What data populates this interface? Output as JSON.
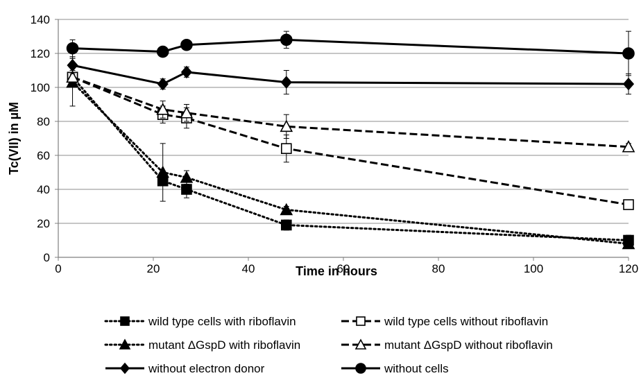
{
  "chart_data": {
    "type": "line",
    "title": "",
    "xlabel": "Time in hours",
    "ylabel": "Tc(VII) in µM",
    "xlim": [
      0,
      120
    ],
    "ylim": [
      0,
      140
    ],
    "xticks": [
      0,
      20,
      40,
      60,
      80,
      100,
      120
    ],
    "yticks": [
      0,
      20,
      40,
      60,
      80,
      100,
      120,
      140
    ],
    "grid": "horizontal",
    "legend_position": "bottom",
    "series": [
      {
        "name": "wild type cells with riboflavin",
        "line": "dotted",
        "marker": "square",
        "filled": true,
        "x": [
          3,
          22,
          27,
          48,
          120
        ],
        "y": [
          106,
          45,
          40,
          19,
          10
        ],
        "err": [
          4,
          0,
          5,
          3,
          3
        ]
      },
      {
        "name": "wild type cells without riboflavin",
        "line": "dashed",
        "marker": "square",
        "filled": false,
        "x": [
          3,
          22,
          27,
          48,
          120
        ],
        "y": [
          106,
          84,
          82,
          64,
          31
        ],
        "err": [
          0,
          5,
          6,
          8,
          0
        ]
      },
      {
        "name": "mutant ΔGspD with riboflavin",
        "line": "dotted",
        "marker": "triangle",
        "filled": true,
        "x": [
          3,
          22,
          27,
          48,
          120
        ],
        "y": [
          103,
          50,
          47,
          28,
          8
        ],
        "err": [
          14,
          17,
          4,
          2,
          2
        ]
      },
      {
        "name": "mutant ΔGspD without riboflavin",
        "line": "dashed",
        "marker": "triangle",
        "filled": false,
        "x": [
          3,
          22,
          27,
          48,
          120
        ],
        "y": [
          106,
          87,
          85,
          77,
          65
        ],
        "err": [
          0,
          5,
          5,
          7,
          2
        ]
      },
      {
        "name": "without electron donor",
        "line": "solid",
        "marker": "diamond",
        "filled": true,
        "x": [
          3,
          22,
          27,
          48,
          120
        ],
        "y": [
          113,
          102,
          109,
          103,
          102
        ],
        "err": [
          5,
          3,
          3,
          7,
          6
        ]
      },
      {
        "name": "without cells",
        "line": "solid",
        "marker": "circle",
        "filled": true,
        "x": [
          3,
          22,
          27,
          48,
          120
        ],
        "y": [
          123,
          121,
          125,
          128,
          120
        ],
        "err": [
          5,
          2,
          2,
          5,
          13
        ]
      }
    ]
  }
}
